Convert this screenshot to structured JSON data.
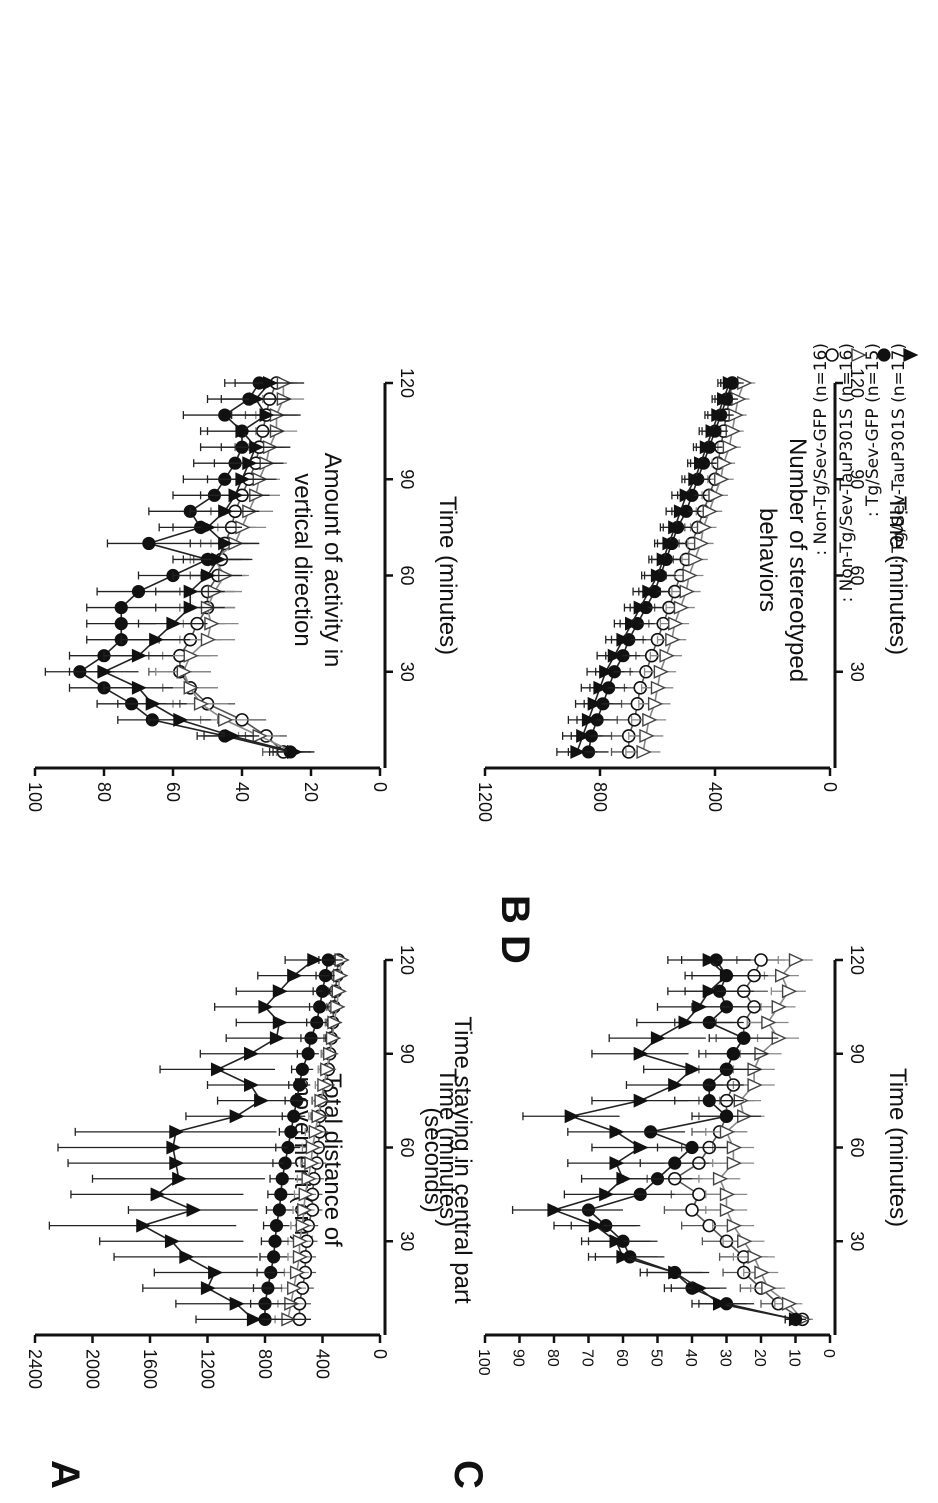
{
  "figure": {
    "x_label": "Time (minutes)",
    "x_ticks": [
      "30",
      "60",
      "90",
      "120"
    ],
    "legend_items": [
      {
        "symbol": "open-circle",
        "text": ": Non-Tg/Sev-GFP (n=16)"
      },
      {
        "symbol": "open-triangle",
        "text": ": Non-Tg/Sev-TauP301S (n=16)"
      },
      {
        "symbol": "filled-circle",
        "text": ": Tg/Sev-GFP (n=15)"
      },
      {
        "symbol": "filled-triangle",
        "text": ": Tg/Sev-TauP301S (n=17)"
      }
    ]
  },
  "chart_data": [
    {
      "panel": "A",
      "type": "line",
      "ylabel_line1": "Total distance of",
      "ylabel_line2": "movement (cm)",
      "xlabel": "Time (minutes)",
      "xlim": [
        0,
        120
      ],
      "ylim": [
        0,
        2400
      ],
      "y_ticks": [
        0,
        400,
        800,
        1200,
        1600,
        2000,
        2400
      ],
      "x": [
        5,
        10,
        15,
        20,
        25,
        30,
        35,
        40,
        45,
        50,
        55,
        60,
        65,
        70,
        75,
        80,
        85,
        90,
        95,
        100,
        105,
        110,
        115,
        120
      ],
      "series": [
        {
          "name": "Non-Tg/Sev-GFP (n=16)",
          "marker": "open-circle",
          "values": [
            560,
            560,
            540,
            520,
            520,
            510,
            500,
            470,
            470,
            460,
            440,
            430,
            420,
            420,
            410,
            370,
            360,
            350,
            340,
            330,
            320,
            310,
            300,
            290
          ],
          "errors": [
            80,
            80,
            80,
            75,
            75,
            75,
            70,
            70,
            70,
            70,
            65,
            65,
            60,
            60,
            60,
            55,
            55,
            55,
            50,
            50,
            50,
            50,
            45,
            45
          ]
        },
        {
          "name": "Non-Tg/Sev-TauP301S (n=16)",
          "marker": "open-triangle",
          "values": [
            640,
            620,
            600,
            580,
            560,
            560,
            540,
            530,
            520,
            500,
            480,
            470,
            450,
            430,
            410,
            390,
            370,
            350,
            330,
            320,
            300,
            290,
            280,
            270
          ],
          "errors": [
            90,
            90,
            85,
            85,
            80,
            80,
            80,
            75,
            75,
            75,
            70,
            70,
            70,
            65,
            65,
            60,
            60,
            60,
            55,
            55,
            55,
            50,
            50,
            50
          ]
        },
        {
          "name": "Tg/Sev-GFP (n=15)",
          "marker": "filled-circle",
          "values": [
            800,
            800,
            780,
            760,
            740,
            730,
            720,
            700,
            690,
            680,
            660,
            640,
            620,
            600,
            580,
            560,
            540,
            500,
            480,
            440,
            420,
            400,
            380,
            360
          ],
          "errors": [
            100,
            100,
            100,
            95,
            95,
            95,
            90,
            90,
            90,
            85,
            85,
            85,
            80,
            80,
            80,
            75,
            75,
            75,
            70,
            70,
            70,
            65,
            65,
            65
          ]
        },
        {
          "name": "Tg/Sev-TauP301S (n=17)",
          "marker": "filled-triangle",
          "values": [
            880,
            1000,
            1200,
            1150,
            1350,
            1450,
            1650,
            1300,
            1550,
            1400,
            1420,
            1440,
            1420,
            1000,
            830,
            900,
            1130,
            900,
            720,
            700,
            800,
            700,
            600,
            460
          ],
          "errors": [
            400,
            420,
            450,
            420,
            500,
            500,
            650,
            450,
            600,
            600,
            750,
            800,
            700,
            350,
            300,
            300,
            400,
            350,
            350,
            300,
            350,
            300,
            250,
            200
          ]
        }
      ]
    },
    {
      "panel": "B",
      "type": "line",
      "ylabel_line1": "Amount of activity in",
      "ylabel_line2": "vertical direction",
      "xlabel": "Time (minutes)",
      "xlim": [
        0,
        120
      ],
      "ylim": [
        0,
        100
      ],
      "y_ticks": [
        0,
        20,
        40,
        60,
        80,
        100
      ],
      "x": [
        5,
        10,
        15,
        20,
        25,
        30,
        35,
        40,
        45,
        50,
        55,
        60,
        65,
        70,
        75,
        80,
        85,
        90,
        95,
        100,
        105,
        110,
        115,
        120
      ],
      "series": [
        {
          "name": "Non-Tg/Sev-GFP (n=16)",
          "marker": "open-circle",
          "values": [
            28,
            33,
            40,
            50,
            55,
            58,
            58,
            55,
            53,
            50,
            50,
            47,
            46,
            45,
            43,
            42,
            40,
            38,
            36,
            35,
            34,
            33,
            32,
            30
          ],
          "errors": [
            6,
            6,
            7,
            8,
            8,
            9,
            9,
            9,
            8,
            8,
            8,
            8,
            8,
            7,
            7,
            7,
            7,
            7,
            7,
            7,
            6,
            6,
            6,
            6
          ]
        },
        {
          "name": "Non-Tg/Sev-TauP301S (n=16)",
          "marker": "open-triangle",
          "values": [
            25,
            35,
            45,
            52,
            55,
            57,
            55,
            50,
            49,
            50,
            48,
            45,
            48,
            42,
            40,
            38,
            36,
            35,
            33,
            32,
            30,
            30,
            28,
            28
          ],
          "errors": [
            5,
            6,
            7,
            8,
            8,
            8,
            8,
            8,
            8,
            8,
            8,
            7,
            7,
            7,
            7,
            7,
            7,
            6,
            6,
            6,
            6,
            6,
            6,
            6
          ]
        },
        {
          "name": "Tg/Sev-GFP (n=15)",
          "marker": "filled-circle",
          "values": [
            26,
            45,
            66,
            72,
            80,
            87,
            80,
            75,
            75,
            75,
            70,
            60,
            50,
            67,
            52,
            55,
            48,
            45,
            42,
            40,
            40,
            45,
            38,
            35
          ],
          "errors": [
            6,
            8,
            10,
            10,
            10,
            10,
            10,
            10,
            10,
            10,
            12,
            10,
            10,
            12,
            12,
            12,
            12,
            12,
            12,
            12,
            12,
            12,
            12,
            10
          ]
        },
        {
          "name": "Tg/Sev-TauP301S (n=17)",
          "marker": "filled-triangle",
          "values": [
            25,
            43,
            58,
            66,
            70,
            80,
            70,
            65,
            60,
            55,
            55,
            50,
            47,
            45,
            50,
            45,
            42,
            40,
            38,
            36,
            40,
            33,
            36,
            32
          ],
          "errors": [
            6,
            8,
            9,
            10,
            10,
            10,
            10,
            10,
            10,
            10,
            10,
            10,
            10,
            10,
            10,
            10,
            10,
            10,
            10,
            10,
            10,
            10,
            10,
            10
          ]
        }
      ]
    },
    {
      "panel": "C",
      "type": "line",
      "ylabel_line1": "Time staying in central part",
      "ylabel_line2": "(seconds)",
      "xlabel": "Time (minutes)",
      "xlim": [
        0,
        120
      ],
      "ylim": [
        0,
        100
      ],
      "y_ticks": [
        0,
        10,
        20,
        30,
        40,
        50,
        60,
        70,
        80,
        90,
        100
      ],
      "x": [
        5,
        10,
        15,
        20,
        25,
        30,
        35,
        40,
        45,
        50,
        55,
        60,
        65,
        70,
        75,
        80,
        85,
        90,
        95,
        100,
        105,
        110,
        115,
        120
      ],
      "series": [
        {
          "name": "Non-Tg/Sev-GFP (n=16)",
          "marker": "open-circle",
          "values": [
            8,
            15,
            20,
            25,
            25,
            30,
            35,
            40,
            38,
            45,
            38,
            35,
            32,
            30,
            30,
            28,
            30,
            28,
            25,
            25,
            22,
            25,
            22,
            20
          ],
          "errors": [
            3,
            5,
            6,
            6,
            7,
            7,
            8,
            8,
            8,
            8,
            8,
            8,
            8,
            8,
            8,
            8,
            8,
            8,
            8,
            8,
            7,
            7,
            7,
            7
          ]
        },
        {
          "name": "Non-Tg/Sev-TauP301S (n=16)",
          "marker": "open-triangle",
          "values": [
            8,
            12,
            18,
            20,
            22,
            25,
            28,
            30,
            30,
            32,
            28,
            28,
            30,
            25,
            26,
            22,
            22,
            20,
            15,
            18,
            15,
            12,
            14,
            10
          ],
          "errors": [
            3,
            4,
            5,
            5,
            6,
            6,
            6,
            6,
            6,
            6,
            6,
            6,
            6,
            6,
            6,
            6,
            6,
            6,
            6,
            6,
            5,
            5,
            5,
            5
          ]
        },
        {
          "name": "Tg/Sev-GFP (n=15)",
          "marker": "filled-circle",
          "values": [
            10,
            30,
            40,
            45,
            58,
            60,
            65,
            70,
            55,
            50,
            45,
            40,
            52,
            30,
            35,
            35,
            30,
            28,
            25,
            35,
            30,
            32,
            30,
            33
          ],
          "errors": [
            3,
            8,
            8,
            8,
            10,
            10,
            10,
            10,
            10,
            10,
            10,
            10,
            10,
            10,
            10,
            10,
            10,
            10,
            10,
            10,
            10,
            10,
            10,
            10
          ]
        },
        {
          "name": "Tg/Sev-TauP301S (n=17)",
          "marker": "filled-triangle",
          "values": [
            10,
            32,
            38,
            45,
            60,
            62,
            68,
            80,
            65,
            60,
            62,
            55,
            62,
            75,
            55,
            45,
            40,
            55,
            50,
            42,
            38,
            35,
            30,
            35
          ],
          "errors": [
            3,
            8,
            8,
            10,
            10,
            10,
            12,
            12,
            12,
            12,
            14,
            14,
            14,
            14,
            14,
            14,
            14,
            14,
            14,
            14,
            12,
            12,
            12,
            12
          ]
        }
      ]
    },
    {
      "panel": "D",
      "type": "line",
      "ylabel_line1": "Number of stereotyped",
      "ylabel_line2": "behaviors",
      "xlabel": "Time (minutes)",
      "xlim": [
        0,
        120
      ],
      "ylim": [
        0,
        1200
      ],
      "y_ticks": [
        0,
        400,
        800,
        1200
      ],
      "x": [
        5,
        10,
        15,
        20,
        25,
        30,
        35,
        40,
        45,
        50,
        55,
        60,
        65,
        70,
        75,
        80,
        85,
        90,
        95,
        100,
        105,
        110,
        115,
        120
      ],
      "series": [
        {
          "name": "Non-Tg/Sev-GFP (n=16)",
          "marker": "open-circle",
          "values": [
            700,
            700,
            680,
            670,
            660,
            640,
            620,
            600,
            580,
            560,
            540,
            520,
            500,
            480,
            460,
            440,
            420,
            400,
            390,
            380,
            370,
            360,
            350,
            340
          ],
          "errors": [
            60,
            60,
            60,
            55,
            55,
            55,
            55,
            50,
            50,
            50,
            50,
            50,
            45,
            45,
            45,
            45,
            45,
            45,
            40,
            40,
            40,
            40,
            40,
            40
          ]
        },
        {
          "name": "Non-Tg/Sev-TauP301S (n=16)",
          "marker": "open-triangle",
          "values": [
            650,
            640,
            630,
            610,
            600,
            590,
            570,
            550,
            540,
            520,
            500,
            490,
            470,
            450,
            440,
            420,
            400,
            380,
            370,
            350,
            340,
            330,
            320,
            300
          ],
          "errors": [
            60,
            60,
            60,
            55,
            55,
            55,
            55,
            50,
            50,
            50,
            50,
            50,
            45,
            45,
            45,
            45,
            45,
            45,
            40,
            40,
            40,
            40,
            40,
            40
          ]
        },
        {
          "name": "Tg/Sev-GFP (n=15)",
          "marker": "filled-circle",
          "values": [
            840,
            830,
            810,
            790,
            770,
            750,
            720,
            700,
            670,
            640,
            610,
            590,
            570,
            550,
            530,
            500,
            480,
            460,
            440,
            420,
            400,
            380,
            360,
            340
          ],
          "errors": [
            70,
            70,
            70,
            65,
            65,
            65,
            60,
            60,
            60,
            55,
            55,
            55,
            50,
            50,
            50,
            50,
            50,
            45,
            45,
            45,
            45,
            45,
            40,
            40
          ]
        },
        {
          "name": "Tg/Sev-TauP301S (n=17)",
          "marker": "filled-triangle",
          "values": [
            880,
            860,
            840,
            820,
            800,
            780,
            750,
            720,
            690,
            660,
            630,
            600,
            580,
            560,
            540,
            520,
            500,
            470,
            450,
            430,
            410,
            390,
            370,
            350
          ],
          "errors": [
            70,
            70,
            70,
            65,
            65,
            65,
            60,
            60,
            60,
            55,
            55,
            55,
            50,
            50,
            50,
            50,
            50,
            45,
            45,
            45,
            45,
            45,
            40,
            40
          ]
        }
      ]
    }
  ]
}
